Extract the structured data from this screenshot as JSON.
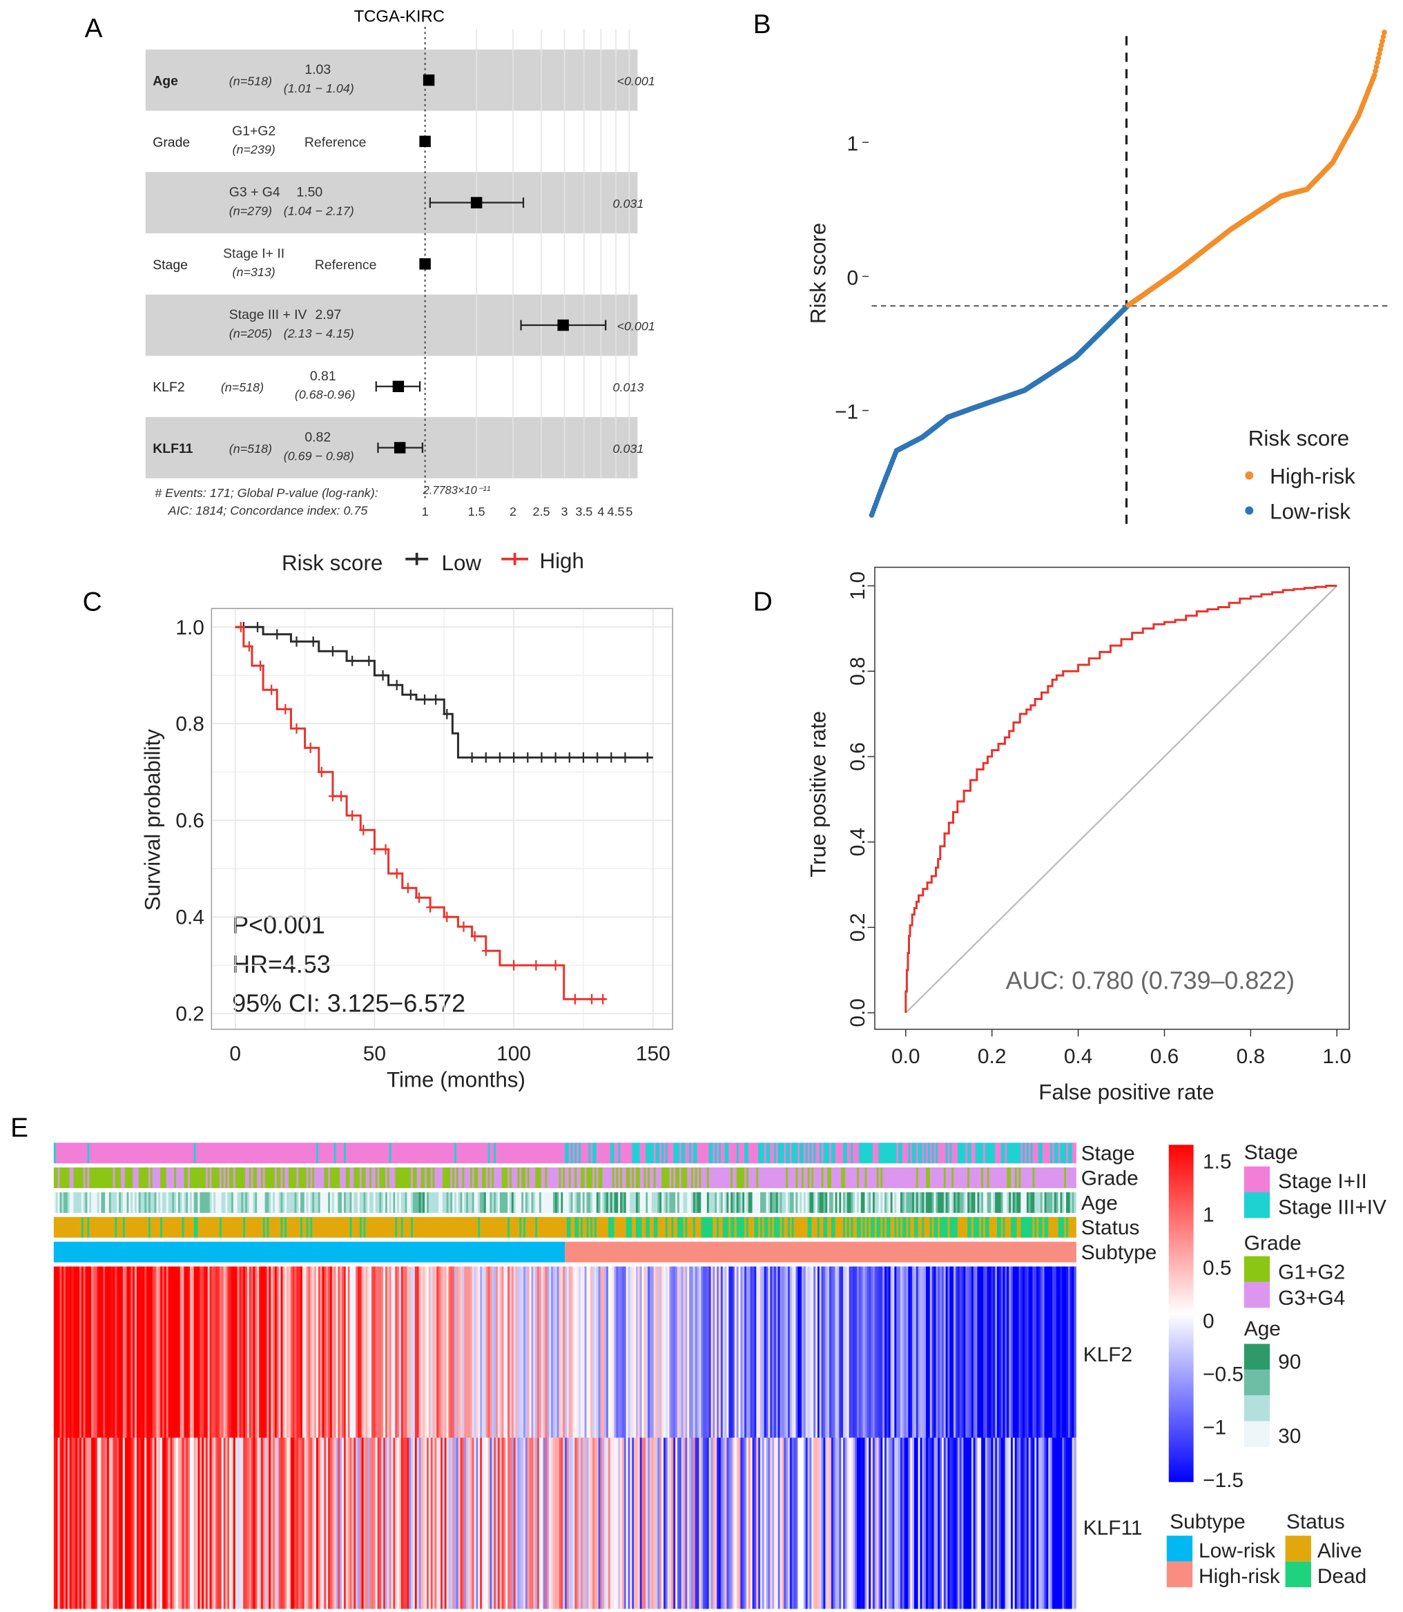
{
  "panels": {
    "a": "A",
    "b": "B",
    "c": "C",
    "d": "D",
    "e": "E"
  },
  "chart_data": [
    {
      "type": "forest",
      "title": "TCGA-KIRC",
      "rows": [
        {
          "variable": "Age",
          "bold": true,
          "group": "",
          "n": "(n=518)",
          "hr": "1.03",
          "ci": "(1.01 − 1.04)",
          "hr_value": 1.03,
          "lo": 1.01,
          "hi": 1.04,
          "p": "<0.001",
          "shaded": true
        },
        {
          "variable": "Grade",
          "bold": false,
          "group": "G1+G2",
          "n": "(n=239)",
          "hr": "Reference",
          "ci": "",
          "hr_value": 1.0,
          "lo": null,
          "hi": null,
          "p": "",
          "shaded": false
        },
        {
          "variable": "",
          "bold": false,
          "group": "G3 + G4",
          "n": "(n=279)",
          "hr": "1.50",
          "ci": "(1.04 − 2.17)",
          "hr_value": 1.5,
          "lo": 1.04,
          "hi": 2.17,
          "p": "0.031",
          "shaded": true
        },
        {
          "variable": "Stage",
          "bold": false,
          "group": "Stage I+ II",
          "n": "(n=313)",
          "hr": "Reference",
          "ci": "",
          "hr_value": 1.0,
          "lo": null,
          "hi": null,
          "p": "",
          "shaded": false
        },
        {
          "variable": "",
          "bold": false,
          "group": "Stage III + IV",
          "n": "(n=205)",
          "hr": "2.97",
          "ci": "(2.13 − 4.15)",
          "hr_value": 2.97,
          "lo": 2.13,
          "hi": 4.15,
          "p": "<0.001",
          "shaded": true
        },
        {
          "variable": "KLF2",
          "bold": false,
          "group": "",
          "n": "(n=518)",
          "hr": "0.81",
          "ci": "(0.68-0.96)",
          "hr_value": 0.81,
          "lo": 0.68,
          "hi": 0.96,
          "p": "0.013",
          "shaded": false
        },
        {
          "variable": "KLF11",
          "bold": true,
          "group": "",
          "n": "(n=518)",
          "hr": "0.82",
          "ci": "(0.69 − 0.98)",
          "hr_value": 0.82,
          "lo": 0.69,
          "hi": 0.98,
          "p": "0.031",
          "shaded": true
        }
      ],
      "footer1": "# Events: 171; Global P-value (log-rank):",
      "footer_p": "2.7783×10⁻¹¹",
      "footer2": "AIC: 1814; Concordance index: 0.75",
      "x_ticks": [
        "1",
        "1.5",
        "2",
        "2.5",
        "3",
        "3.5",
        "4",
        "4.5",
        "5"
      ],
      "x_tick_values": [
        1,
        1.5,
        2,
        2.5,
        3,
        3.5,
        4,
        4.5,
        5
      ],
      "x_scale": "log"
    },
    {
      "type": "scatter",
      "ylabel": "Risk score",
      "y_ticks": [
        "1",
        "0",
        "−1"
      ],
      "y_tick_values": [
        1,
        0,
        -1
      ],
      "ylim": [
        -1.85,
        1.9
      ],
      "n_patients": 518,
      "cutoff_rank": 259,
      "cutoff_score": -0.22,
      "curve_ranks": [
        1,
        10,
        26,
        52,
        78,
        104,
        155,
        207,
        259,
        311,
        363,
        414,
        440,
        466,
        492,
        508,
        518
      ],
      "curve_scores": [
        -1.78,
        -1.6,
        -1.3,
        -1.2,
        -1.05,
        -0.98,
        -0.85,
        -0.6,
        -0.22,
        0.05,
        0.35,
        0.6,
        0.65,
        0.85,
        1.2,
        1.5,
        1.82
      ],
      "legend_title": "Risk score",
      "series": [
        {
          "name": "High-risk",
          "color": "#f28e2b"
        },
        {
          "name": "Low-risk",
          "color": "#2e75b6"
        }
      ],
      "legend_position": "bottom-right"
    },
    {
      "type": "line",
      "legend_title": "Risk score",
      "legend_position": "top",
      "xlabel": "Time (months)",
      "ylabel": "Survival probability",
      "x_ticks": [
        "0",
        "50",
        "100",
        "150"
      ],
      "x_tick_values": [
        0,
        50,
        100,
        150
      ],
      "y_ticks": [
        "1.0",
        "0.8",
        "0.6",
        "0.4",
        "0.2"
      ],
      "y_tick_values": [
        1.0,
        0.8,
        0.6,
        0.4,
        0.2
      ],
      "xlim": [
        -8,
        158
      ],
      "ylim": [
        0.19,
        1.04
      ],
      "grid": true,
      "series": [
        {
          "name": "Low",
          "color": "#2b2b2b",
          "x": [
            0,
            10,
            20,
            30,
            40,
            50,
            55,
            60,
            65,
            72,
            75,
            78,
            80,
            150
          ],
          "y": [
            1,
            0.985,
            0.97,
            0.95,
            0.93,
            0.9,
            0.88,
            0.86,
            0.85,
            0.85,
            0.82,
            0.78,
            0.73,
            0.73
          ],
          "censor_x": [
            3,
            8,
            15,
            22,
            28,
            35,
            42,
            48,
            53,
            58,
            63,
            68,
            72,
            76,
            85,
            90,
            95,
            100,
            105,
            110,
            115,
            120,
            125,
            130,
            135,
            140,
            148
          ]
        },
        {
          "name": "High",
          "color": "#e8322b",
          "x": [
            0,
            3,
            6,
            10,
            15,
            20,
            25,
            30,
            35,
            40,
            45,
            50,
            55,
            60,
            65,
            70,
            75,
            80,
            85,
            90,
            95,
            117,
            118,
            133
          ],
          "y": [
            1,
            0.96,
            0.92,
            0.87,
            0.83,
            0.79,
            0.75,
            0.7,
            0.65,
            0.61,
            0.58,
            0.54,
            0.49,
            0.46,
            0.44,
            0.42,
            0.4,
            0.38,
            0.36,
            0.33,
            0.3,
            0.3,
            0.23,
            0.23
          ],
          "censor_x": [
            2,
            5,
            9,
            13,
            18,
            22,
            27,
            31,
            35,
            38,
            42,
            46,
            50,
            54,
            58,
            62,
            66,
            70,
            76,
            82,
            86,
            90,
            100,
            108,
            115,
            122,
            128,
            132
          ]
        }
      ],
      "annotations": [
        "P<0.001",
        "HR=4.53",
        "95% CI: 3.125−6.572"
      ]
    },
    {
      "type": "line",
      "xlabel": "False positive rate",
      "ylabel": "True positive rate",
      "x_ticks": [
        "0.0",
        "0.2",
        "0.4",
        "0.6",
        "0.8",
        "1.0"
      ],
      "x_tick_values": [
        0,
        0.2,
        0.4,
        0.6,
        0.8,
        1.0
      ],
      "y_ticks": [
        "0.0",
        "0.2",
        "0.4",
        "0.6",
        "0.8",
        "1.0"
      ],
      "y_tick_values": [
        0,
        0.2,
        0.4,
        0.6,
        0.8,
        1.0
      ],
      "xlim": [
        -0.04,
        1.04
      ],
      "ylim": [
        -0.04,
        1.04
      ],
      "series": [
        {
          "name": "",
          "color": "#e8322b",
          "x": [
            0,
            0.005,
            0.01,
            0.02,
            0.03,
            0.05,
            0.07,
            0.08,
            0.1,
            0.12,
            0.15,
            0.18,
            0.2,
            0.23,
            0.25,
            0.28,
            0.3,
            0.33,
            0.35,
            0.38,
            0.4,
            0.45,
            0.5,
            0.55,
            0.6,
            0.65,
            0.7,
            0.75,
            0.8,
            0.85,
            0.9,
            0.95,
            1
          ],
          "y": [
            0,
            0.1,
            0.18,
            0.23,
            0.26,
            0.29,
            0.32,
            0.36,
            0.42,
            0.47,
            0.52,
            0.57,
            0.6,
            0.63,
            0.66,
            0.7,
            0.72,
            0.75,
            0.78,
            0.8,
            0.8,
            0.83,
            0.86,
            0.89,
            0.91,
            0.92,
            0.94,
            0.95,
            0.97,
            0.98,
            0.99,
            0.995,
            1
          ]
        }
      ],
      "diagonal": true,
      "annotation": "AUC: 0.780 (0.739–0.822)"
    },
    {
      "type": "heatmap",
      "n_columns": 518,
      "annotation_rows": [
        "Stage",
        "Grade",
        "Age",
        "Status",
        "Subtype"
      ],
      "gene_rows": [
        "KLF2",
        "KLF11"
      ],
      "color_scale": {
        "min": -1.5,
        "max": 1.5,
        "low": "#0000ff",
        "mid": "#ffffff",
        "high": "#ff0000",
        "ticks": [
          "1.5",
          "1",
          "0.5",
          "0",
          "−0.5",
          "−1",
          "−1.5"
        ]
      },
      "legends": {
        "stage": {
          "title": "Stage",
          "items": [
            {
              "label": "Stage I+II",
              "color": "#f27ed8"
            },
            {
              "label": "Stage III+IV",
              "color": "#1ed2d2"
            }
          ]
        },
        "grade": {
          "title": "Grade",
          "items": [
            {
              "label": "G1+G2",
              "color": "#8cc615"
            },
            {
              "label": "G3+G4",
              "color": "#dc96f0"
            }
          ]
        },
        "age": {
          "title": "Age",
          "labels": [
            "90",
            "30"
          ],
          "colors": [
            "#2e9a6a",
            "#6cbfa4",
            "#b3e0dc",
            "#eef6fa"
          ]
        },
        "subtype": {
          "title": "Subtype",
          "items": [
            {
              "label": "Low-risk",
              "color": "#00b8f2"
            },
            {
              "label": "High-risk",
              "color": "#fa8d82"
            }
          ]
        },
        "status": {
          "title": "Status",
          "items": [
            {
              "label": "Alive",
              "color": "#e2a80b"
            },
            {
              "label": "Dead",
              "color": "#1fd27d"
            }
          ]
        }
      }
    }
  ]
}
